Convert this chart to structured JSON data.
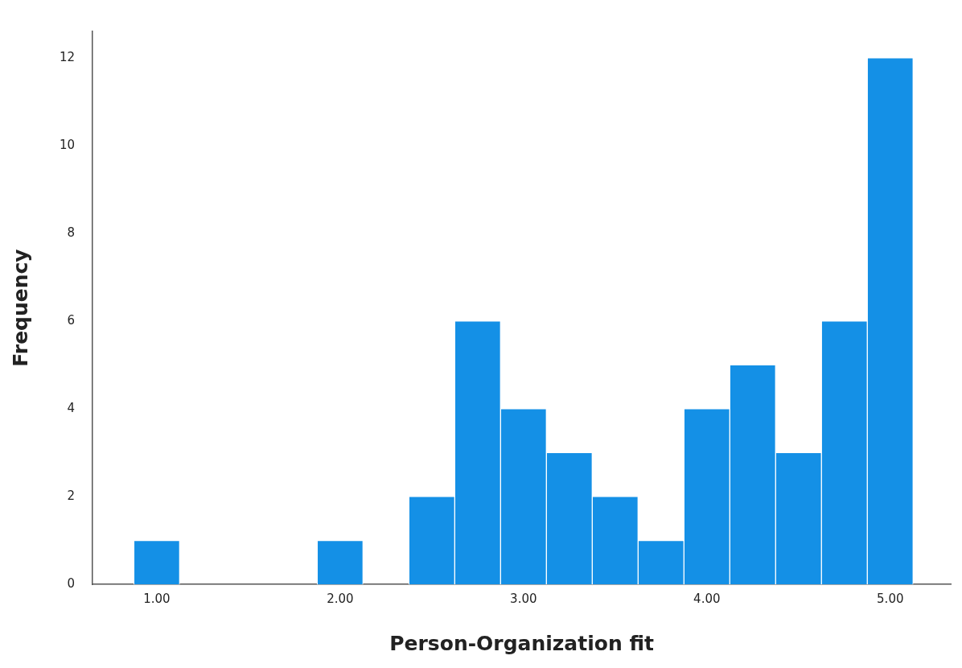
{
  "chart_data": {
    "type": "histogram",
    "xlabel": "Person-Organization fit",
    "ylabel": "Frequency",
    "bins": [
      0.875,
      1.125,
      1.375,
      1.625,
      1.875,
      2.125,
      2.375,
      2.625,
      2.875,
      3.125,
      3.375,
      3.625,
      3.875,
      4.125,
      4.375,
      4.625,
      4.875,
      5.125
    ],
    "values": [
      1,
      0,
      0,
      0,
      1,
      0,
      2,
      6,
      4,
      3,
      2,
      1,
      4,
      5,
      3,
      6,
      12
    ],
    "color": "#1490e6",
    "xlim": [
      0.65,
      5.33
    ],
    "xticks": [
      {
        "value": 1,
        "label": "1.00"
      },
      {
        "value": 2,
        "label": "2.00"
      },
      {
        "value": 3,
        "label": "3.00"
      },
      {
        "value": 4,
        "label": "4.00"
      },
      {
        "value": 5,
        "label": "5.00"
      }
    ],
    "ylim": [
      0,
      12.6
    ],
    "yticks": [
      0,
      2,
      4,
      6,
      8,
      10,
      12
    ],
    "grid": false,
    "legend": false
  }
}
